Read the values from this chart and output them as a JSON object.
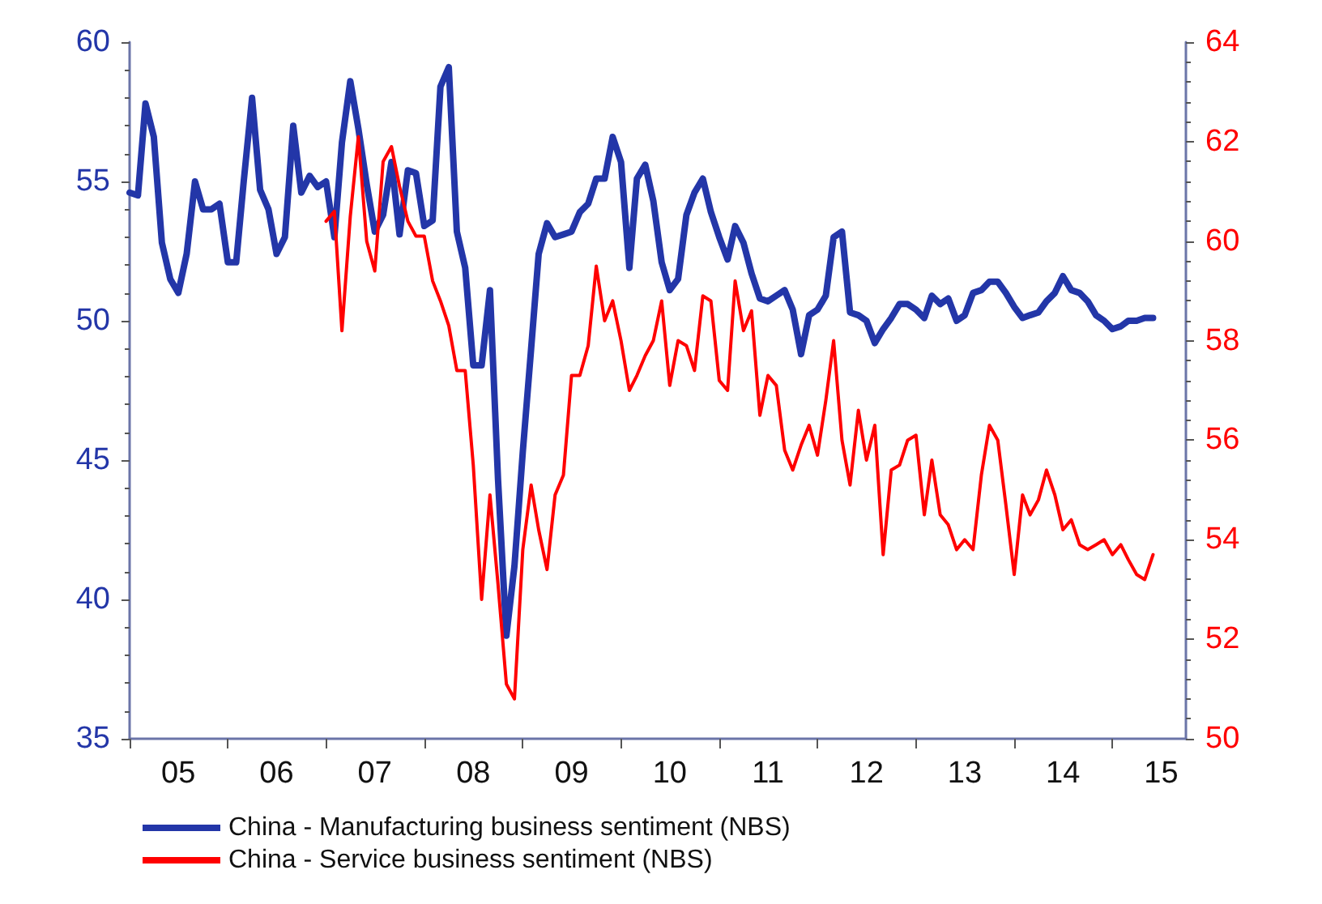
{
  "chart_data": {
    "type": "line",
    "x": [
      "2005-01",
      "2005-02",
      "2005-03",
      "2005-04",
      "2005-05",
      "2005-06",
      "2005-07",
      "2005-08",
      "2005-09",
      "2005-10",
      "2005-11",
      "2005-12",
      "2006-01",
      "2006-02",
      "2006-03",
      "2006-04",
      "2006-05",
      "2006-06",
      "2006-07",
      "2006-08",
      "2006-09",
      "2006-10",
      "2006-11",
      "2006-12",
      "2007-01",
      "2007-02",
      "2007-03",
      "2007-04",
      "2007-05",
      "2007-06",
      "2007-07",
      "2007-08",
      "2007-09",
      "2007-10",
      "2007-11",
      "2007-12",
      "2008-01",
      "2008-02",
      "2008-03",
      "2008-04",
      "2008-05",
      "2008-06",
      "2008-07",
      "2008-08",
      "2008-09",
      "2008-10",
      "2008-11",
      "2008-12",
      "2009-01",
      "2009-02",
      "2009-03",
      "2009-04",
      "2009-05",
      "2009-06",
      "2009-07",
      "2009-08",
      "2009-09",
      "2009-10",
      "2009-11",
      "2009-12",
      "2010-01",
      "2010-02",
      "2010-03",
      "2010-04",
      "2010-05",
      "2010-06",
      "2010-07",
      "2010-08",
      "2010-09",
      "2010-10",
      "2010-11",
      "2010-12",
      "2011-01",
      "2011-02",
      "2011-03",
      "2011-04",
      "2011-05",
      "2011-06",
      "2011-07",
      "2011-08",
      "2011-09",
      "2011-10",
      "2011-11",
      "2011-12",
      "2012-01",
      "2012-02",
      "2012-03",
      "2012-04",
      "2012-05",
      "2012-06",
      "2012-07",
      "2012-08",
      "2012-09",
      "2012-10",
      "2012-11",
      "2012-12",
      "2013-01",
      "2013-02",
      "2013-03",
      "2013-04",
      "2013-05",
      "2013-06",
      "2013-07",
      "2013-08",
      "2013-09",
      "2013-10",
      "2013-11",
      "2013-12",
      "2014-01",
      "2014-02",
      "2014-03",
      "2014-04",
      "2014-05",
      "2014-06",
      "2014-07",
      "2014-08",
      "2014-09",
      "2014-10",
      "2014-11",
      "2014-12",
      "2015-01",
      "2015-02",
      "2015-03",
      "2015-04",
      "2015-05",
      "2015-06"
    ],
    "series": [
      {
        "name": "China - Manufacturing business sentiment (NBS)",
        "color": "#2336a8",
        "values": [
          54.6,
          54.5,
          57.8,
          56.6,
          52.8,
          51.5,
          51.0,
          52.4,
          55.0,
          54.0,
          54.0,
          54.2,
          52.1,
          52.1,
          55.0,
          58.0,
          54.7,
          54.0,
          52.4,
          53.0,
          57.0,
          54.6,
          55.2,
          54.8,
          55.0,
          53.0,
          56.4,
          58.6,
          56.9,
          54.9,
          53.2,
          53.8,
          55.7,
          53.1,
          55.4,
          55.3,
          53.4,
          53.6,
          58.4,
          59.1,
          53.2,
          51.9,
          48.4,
          48.4,
          51.1,
          44.3,
          38.7,
          41.2,
          45.3,
          49.0,
          52.4,
          53.5,
          53.0,
          53.1,
          53.2,
          53.9,
          54.2,
          55.1,
          55.1,
          56.6,
          55.7,
          51.9,
          55.1,
          55.6,
          54.3,
          52.1,
          51.1,
          51.5,
          53.8,
          54.6,
          55.1,
          53.9,
          53.0,
          52.2,
          53.4,
          52.8,
          51.7,
          50.8,
          50.7,
          50.9,
          51.1,
          50.4,
          48.8,
          50.2,
          50.4,
          50.9,
          53.0,
          53.2,
          50.3,
          50.2,
          50.0,
          49.2,
          49.7,
          50.1,
          50.6,
          50.6,
          50.4,
          50.1,
          50.9,
          50.6,
          50.8,
          50.0,
          50.2,
          51.0,
          51.1,
          51.4,
          51.4,
          51.0,
          50.5,
          50.1,
          50.2,
          50.3,
          50.7,
          51.0,
          51.6,
          51.1,
          51.0,
          50.7,
          50.2,
          50.0,
          49.7,
          49.8,
          50.0,
          50.0,
          50.1,
          50.1
        ]
      },
      {
        "name": "China - Service business sentiment (NBS)",
        "color": "#ff0000",
        "axis": "y2",
        "values": [
          null,
          null,
          null,
          null,
          null,
          null,
          null,
          null,
          null,
          null,
          null,
          null,
          null,
          null,
          null,
          null,
          null,
          null,
          null,
          null,
          null,
          null,
          null,
          null,
          60.4,
          60.6,
          58.2,
          60.5,
          62.1,
          60.0,
          59.4,
          61.6,
          61.9,
          61.1,
          60.4,
          60.1,
          60.1,
          59.2,
          58.8,
          58.3,
          57.4,
          57.4,
          55.5,
          52.8,
          54.9,
          53.1,
          51.1,
          50.8,
          53.8,
          55.1,
          54.2,
          53.4,
          54.9,
          55.3,
          57.3,
          57.3,
          57.9,
          59.5,
          58.4,
          58.8,
          58.0,
          57.0,
          57.3,
          57.7,
          58.0,
          58.8,
          57.1,
          58.0,
          57.9,
          57.4,
          58.9,
          58.8,
          57.2,
          57.0,
          59.2,
          58.2,
          58.6,
          56.5,
          57.3,
          57.1,
          55.8,
          55.4,
          55.9,
          56.3,
          55.7,
          56.8,
          58.0,
          56.0,
          55.1,
          56.6,
          55.6,
          56.3,
          53.7,
          55.4,
          55.5,
          56.0,
          56.1,
          54.5,
          55.6,
          54.5,
          54.3,
          53.8,
          54.0,
          53.8,
          55.3,
          56.3,
          56.0,
          54.7,
          53.3,
          54.9,
          54.5,
          54.8,
          55.4,
          54.9,
          54.2,
          54.4,
          53.9,
          53.8,
          53.9,
          54.0,
          53.7,
          53.9,
          53.6,
          53.3,
          53.2,
          53.7
        ]
      }
    ],
    "xlim": [
      "2005-01",
      "2015-10"
    ],
    "xticks": [
      {
        "value": "2005-01",
        "label": null
      },
      {
        "value": "2005-07",
        "label": "05"
      },
      {
        "value": "2006-01",
        "label": null
      },
      {
        "value": "2006-07",
        "label": "06"
      },
      {
        "value": "2007-01",
        "label": null
      },
      {
        "value": "2007-07",
        "label": "07"
      },
      {
        "value": "2008-01",
        "label": null
      },
      {
        "value": "2008-07",
        "label": "08"
      },
      {
        "value": "2009-01",
        "label": null
      },
      {
        "value": "2009-07",
        "label": "09"
      },
      {
        "value": "2010-01",
        "label": null
      },
      {
        "value": "2010-07",
        "label": "10"
      },
      {
        "value": "2011-01",
        "label": null
      },
      {
        "value": "2011-07",
        "label": "11"
      },
      {
        "value": "2012-01",
        "label": null
      },
      {
        "value": "2012-07",
        "label": "12"
      },
      {
        "value": "2013-01",
        "label": null
      },
      {
        "value": "2013-07",
        "label": "13"
      },
      {
        "value": "2014-01",
        "label": null
      },
      {
        "value": "2014-07",
        "label": "14"
      },
      {
        "value": "2015-01",
        "label": null
      },
      {
        "value": "2015-07",
        "label": "15"
      }
    ],
    "ylim": [
      35,
      60
    ],
    "yticks": [
      35,
      40,
      45,
      50,
      55,
      60
    ],
    "y2lim": [
      50,
      64
    ],
    "y2ticks": [
      50,
      52,
      54,
      56,
      58,
      60,
      62,
      64
    ],
    "legend": "bottom",
    "grid": false,
    "marker": "none",
    "line_style": "solid"
  }
}
